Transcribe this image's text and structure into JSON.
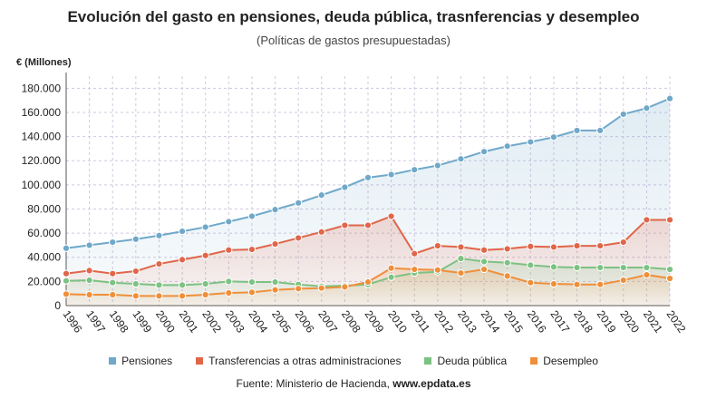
{
  "chart_data": {
    "type": "area",
    "title": "Evolución del gasto en pensiones, deuda pública, trasnferencias y desempleo",
    "subtitle": "(Políticas de gastos presupuestadas)",
    "ylabel": "€ (Millones)",
    "ylim": [
      0,
      190000
    ],
    "yticks": [
      0,
      20000,
      40000,
      60000,
      80000,
      100000,
      120000,
      140000,
      160000,
      180000
    ],
    "ytick_labels": [
      "0",
      "20.000",
      "40.000",
      "60.000",
      "80.000",
      "100.000",
      "120.000",
      "140.000",
      "160.000",
      "180.000"
    ],
    "grid": true,
    "legend_position": "bottom",
    "categories": [
      "1996",
      "1997",
      "1998",
      "1999",
      "2000",
      "2001",
      "2002",
      "2003",
      "2004",
      "2005",
      "2006",
      "2007",
      "2008",
      "2009",
      "2010",
      "2011",
      "2012",
      "2013",
      "2014",
      "2015",
      "2016",
      "2017",
      "2018",
      "2019",
      "2020",
      "2021",
      "2022"
    ],
    "series": [
      {
        "name": "Pensiones",
        "color": "#6fa8c9",
        "values": [
          47500,
          50000,
          52500,
          55000,
          58000,
          61500,
          65000,
          69500,
          74000,
          79500,
          85000,
          91500,
          98000,
          106000,
          108500,
          112500,
          116000,
          121500,
          127500,
          132000,
          135500,
          139500,
          145000,
          145000,
          158500,
          163500,
          171500
        ]
      },
      {
        "name": "Transferencias a otras administraciones",
        "color": "#e0664a",
        "values": [
          26500,
          29000,
          26500,
          28500,
          34500,
          38000,
          41500,
          46000,
          46500,
          51000,
          56000,
          61000,
          66500,
          66500,
          74000,
          43000,
          49500,
          48500,
          46000,
          47000,
          49000,
          48500,
          49500,
          49500,
          52500,
          71000,
          71000
        ]
      },
      {
        "name": "Deuda pública",
        "color": "#7cc282",
        "values": [
          20500,
          21000,
          19000,
          18000,
          17000,
          17000,
          18000,
          20000,
          19500,
          19500,
          17500,
          16000,
          16500,
          17500,
          23500,
          27000,
          28000,
          39000,
          36500,
          35500,
          33500,
          32000,
          31500,
          31500,
          31500,
          31500,
          30000
        ]
      },
      {
        "name": "Desempleo",
        "color": "#ef8f3a",
        "values": [
          9500,
          9000,
          9000,
          8000,
          8000,
          8000,
          9000,
          10500,
          11000,
          13000,
          14000,
          14500,
          15500,
          19500,
          31000,
          30000,
          29500,
          27000,
          30000,
          24500,
          19000,
          18000,
          17500,
          17500,
          21000,
          25500,
          22500
        ]
      }
    ]
  },
  "source": {
    "label": "Fuente: Ministerio de Hacienda, ",
    "site": "www.epdata.es"
  }
}
